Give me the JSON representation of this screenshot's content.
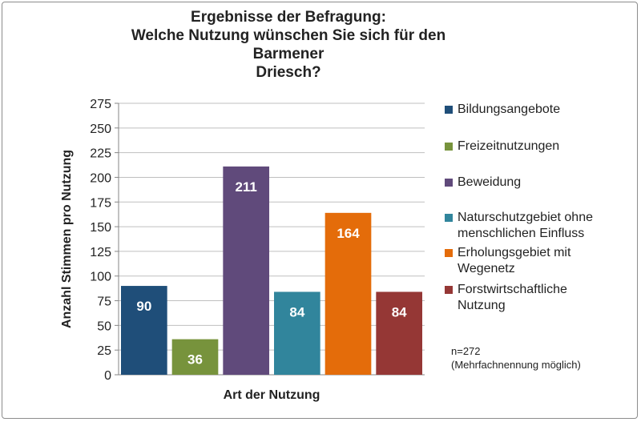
{
  "chart_data": {
    "type": "bar",
    "title": "Ergebnisse der Befragung:\nWelche Nutzung wünschen Sie sich für den Barmener\nDriesch?",
    "xlabel": "Art der Nutzung",
    "ylabel": "Anzahl Stimmen pro Nutzung",
    "ylim": [
      0,
      275
    ],
    "yticks": [
      0,
      25,
      50,
      75,
      100,
      125,
      150,
      175,
      200,
      225,
      250,
      275
    ],
    "grid": true,
    "legend_placement": "right",
    "categories": [
      "Bildungsangebote",
      "Freizeitnutzungen",
      "Beweidung",
      "Naturschutzgebiet ohne menschlichen Einfluss",
      "Erholungsgebiet mit Wegenetz",
      "Forstwirtschaftliche Nutzung"
    ],
    "legend": [
      "Bildungsangebote",
      "Freizeitnutzungen",
      "Beweidung",
      "Naturschutzgebiet ohne\nmenschlichen Einfluss",
      "Erholungsgebiet mit\nWegenetz",
      "Forstwirtschaftliche\nNutzung"
    ],
    "values": [
      90,
      36,
      211,
      84,
      164,
      84
    ],
    "colors": [
      "#1f4e79",
      "#77933c",
      "#604a7b",
      "#31859c",
      "#e46c0a",
      "#953735"
    ],
    "annotation": "n=272\n(Mehrfachnennung möglich)"
  }
}
